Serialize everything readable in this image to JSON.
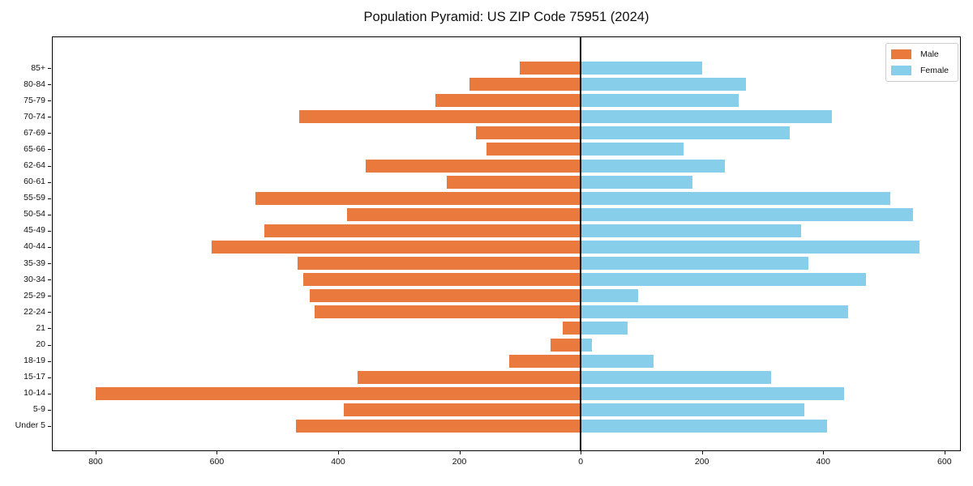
{
  "title": "Population Pyramid: US ZIP Code 75951 (2024)",
  "legend": {
    "male_label": "Male",
    "female_label": "Female",
    "position": "upper right"
  },
  "colors": {
    "male": "#EA793D",
    "female": "#87CEEB",
    "spine": "#000000",
    "zero_line": "#000000",
    "legend_border": "#cccccc",
    "text": "#111111"
  },
  "chart_data": {
    "type": "bar",
    "subtype": "population-pyramid-horizontal",
    "title": "Population Pyramid: US ZIP Code 75951 (2024)",
    "categories_top_to_bottom": [
      "85+",
      "80-84",
      "75-79",
      "70-74",
      "67-69",
      "65-66",
      "62-64",
      "60-61",
      "55-59",
      "50-54",
      "45-49",
      "40-44",
      "35-39",
      "30-34",
      "25-29",
      "22-24",
      "21",
      "20",
      "18-19",
      "15-17",
      "10-14",
      "5-9",
      "Under 5"
    ],
    "series": [
      {
        "name": "Male",
        "side": "left",
        "color": "#EA793D",
        "values": [
          100,
          183,
          240,
          464,
          173,
          155,
          355,
          221,
          537,
          385,
          521,
          608,
          467,
          458,
          447,
          439,
          29,
          50,
          118,
          368,
          800,
          390,
          469
        ]
      },
      {
        "name": "Female",
        "side": "right",
        "color": "#87CEEB",
        "values": [
          200,
          272,
          260,
          414,
          345,
          170,
          238,
          185,
          510,
          548,
          363,
          559,
          375,
          470,
          95,
          441,
          78,
          18,
          120,
          314,
          435,
          369,
          407
        ]
      }
    ],
    "x_tick_values": [
      -800,
      -600,
      -400,
      -200,
      0,
      200,
      400,
      600
    ],
    "x_tick_labels": [
      "800",
      "600",
      "400",
      "200",
      "0",
      "200",
      "400",
      "600"
    ],
    "xlim": [
      -872,
      627
    ],
    "bar_thickness_fraction": 0.8,
    "grid": false,
    "legend_position": "upper right"
  }
}
